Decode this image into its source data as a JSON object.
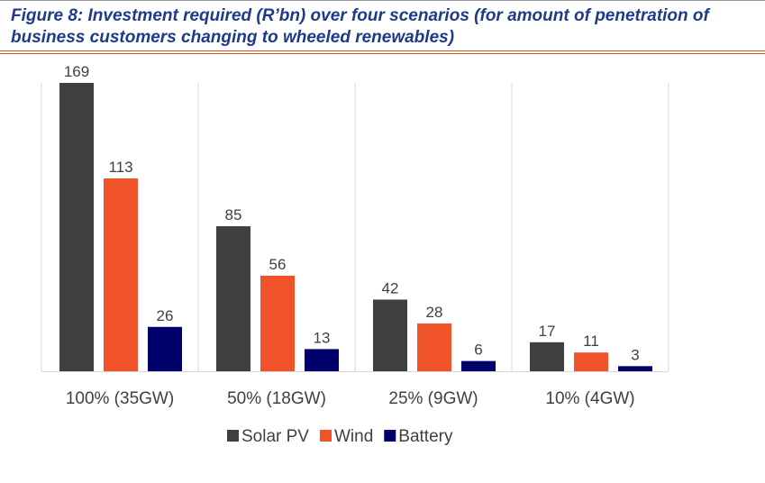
{
  "figure": {
    "title": "Figure 8: Investment required (R’bn) over four scenarios (for amount of penetration of business customers changing to wheeled renewables)"
  },
  "colors": {
    "solar": "#404040",
    "wind": "#f0532a",
    "battery": "#00006b",
    "title": "#1f3a8a",
    "rule": "#d4551f"
  },
  "chart_data": {
    "type": "bar",
    "title": "",
    "xlabel": "",
    "ylabel": "",
    "ylim": [
      0,
      169
    ],
    "grid": false,
    "legend_position": "bottom",
    "categories": [
      "100% (35GW)",
      "50% (18GW)",
      "25% (9GW)",
      "10% (4GW)"
    ],
    "series": [
      {
        "name": "Solar PV",
        "color": "#404040",
        "values": [
          169,
          85,
          42,
          17
        ]
      },
      {
        "name": "Wind",
        "color": "#f0532a",
        "values": [
          113,
          56,
          28,
          11
        ]
      },
      {
        "name": "Battery",
        "color": "#00006b",
        "values": [
          26,
          13,
          6,
          3
        ]
      }
    ]
  }
}
